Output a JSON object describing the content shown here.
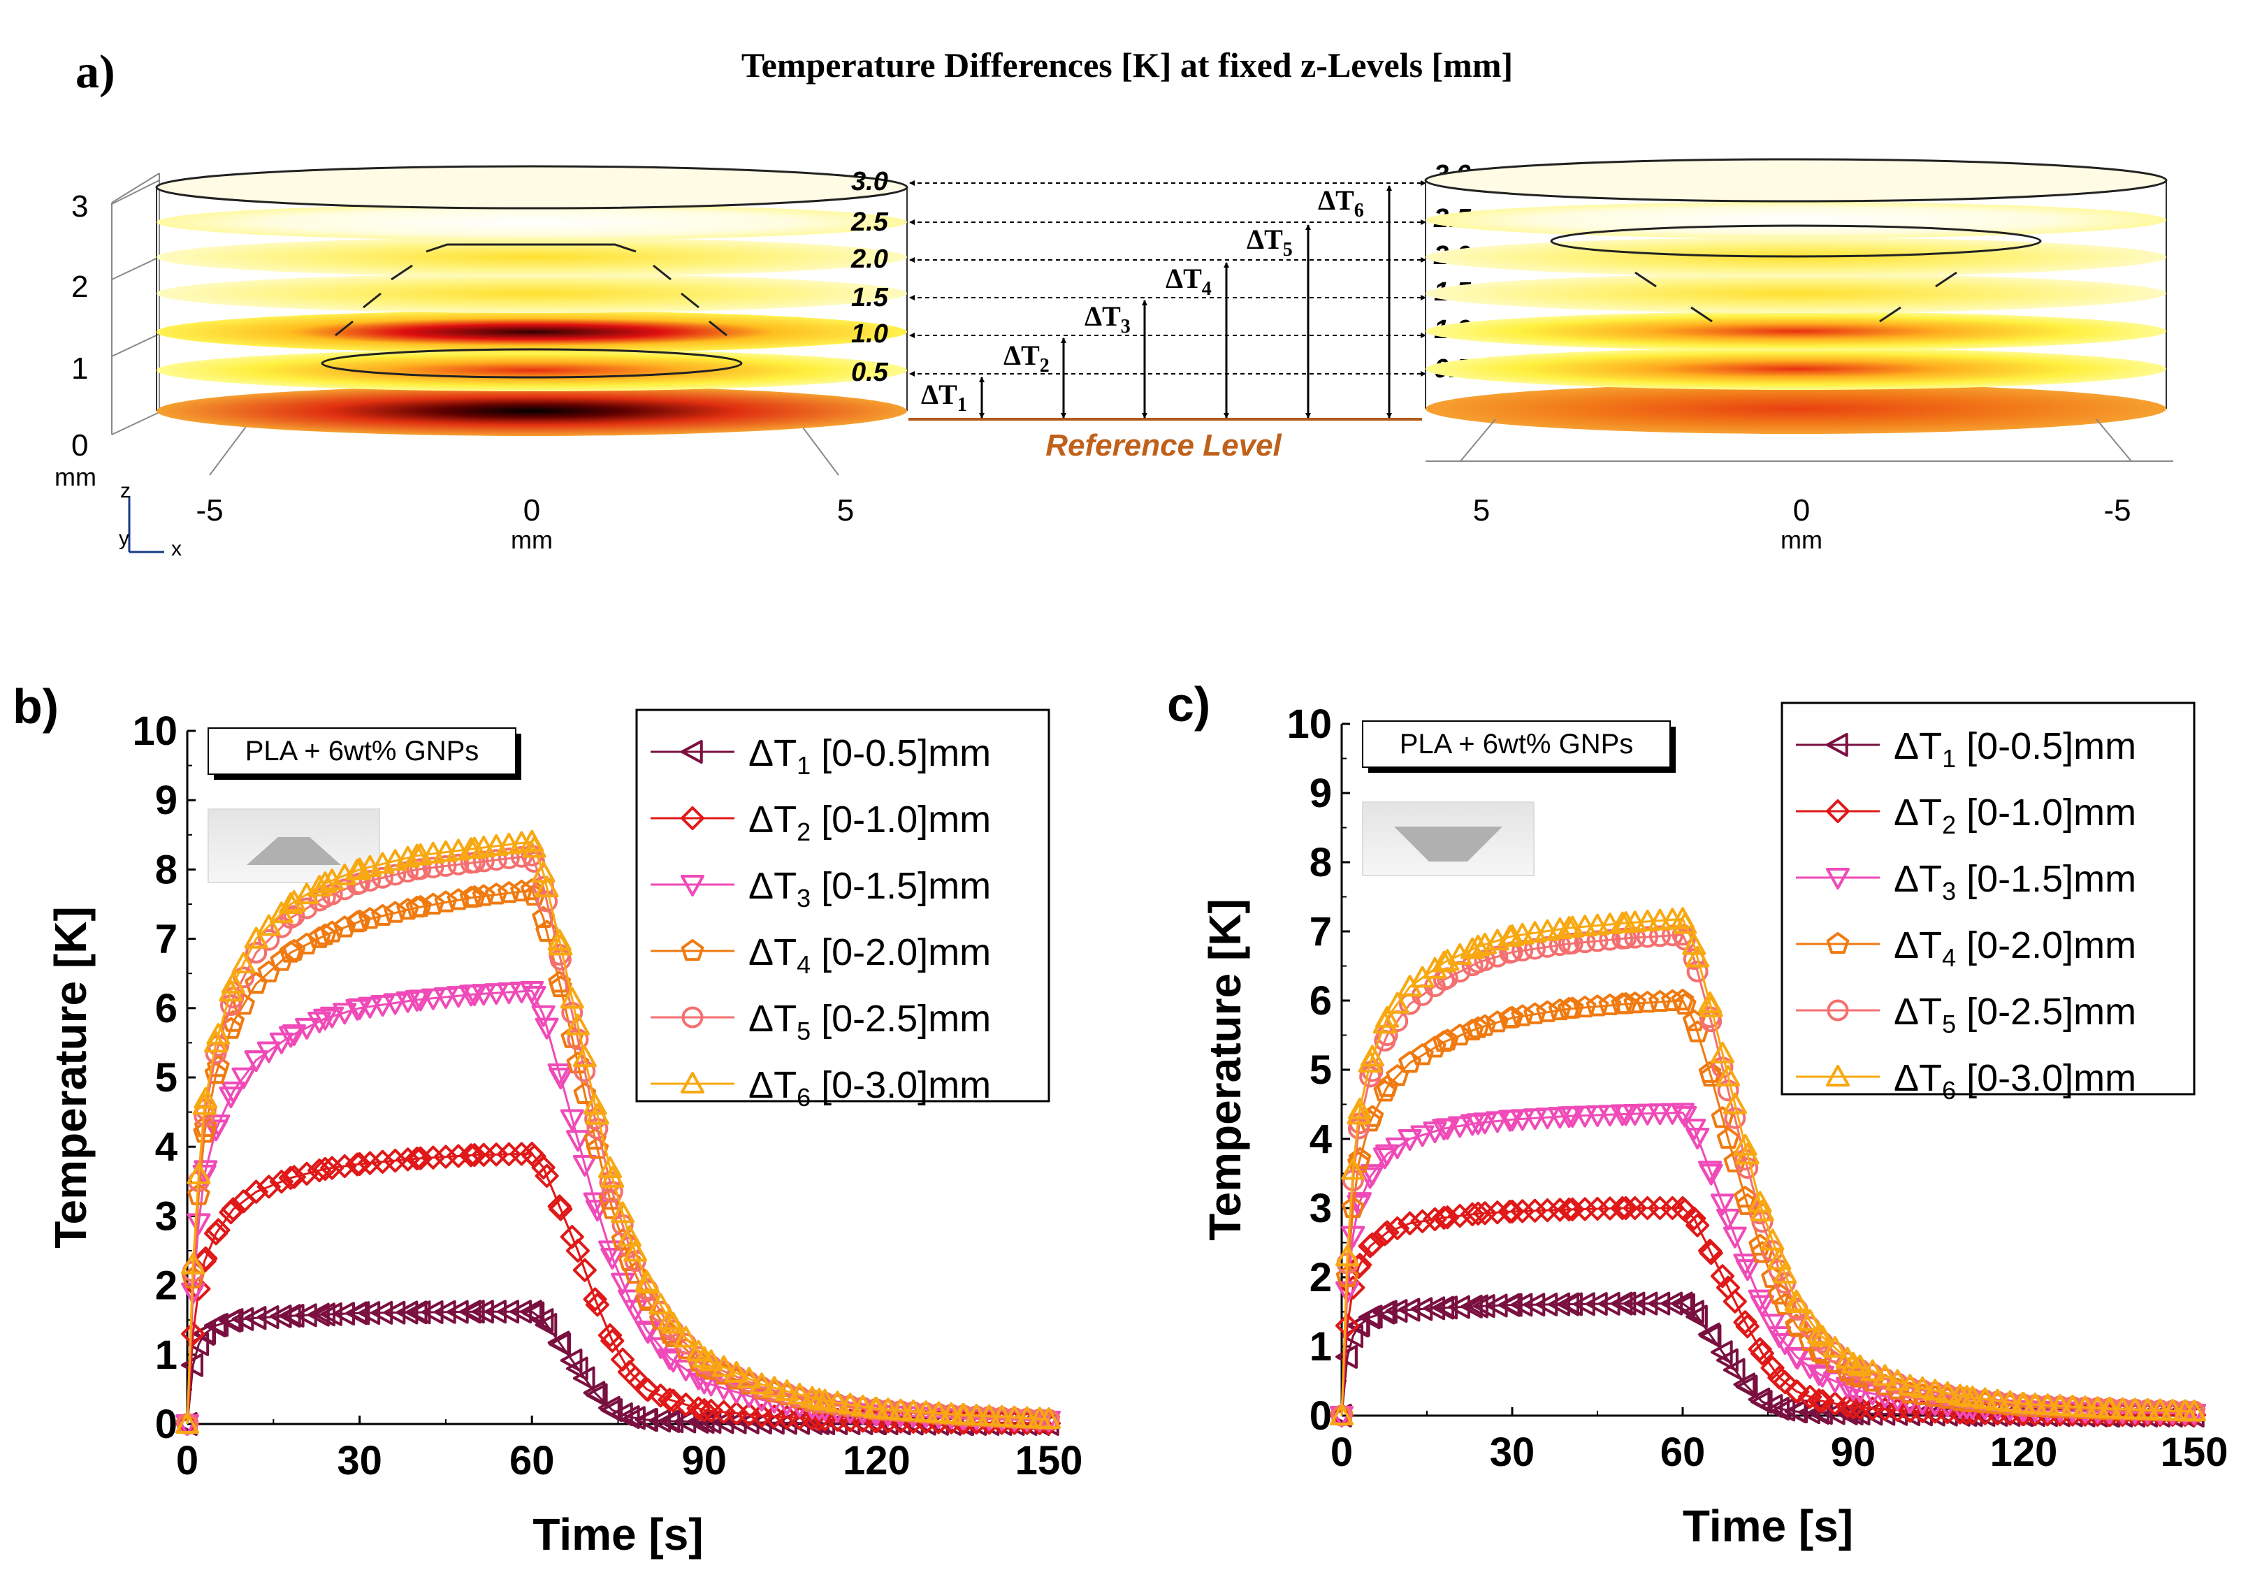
{
  "panel_a": {
    "label": "a)",
    "title": "Temperature Differences [K] at fixed z-Levels [mm]",
    "z_ticks": [
      "0",
      "1",
      "2",
      "3"
    ],
    "z_unit": "mm",
    "left_x_ticks": [
      "-5",
      "0",
      "5"
    ],
    "right_x_ticks": [
      "5",
      "0",
      "-5"
    ],
    "x_unit": "mm",
    "axis_z": "z",
    "axis_y": "y",
    "axis_x": "x",
    "levels": [
      "3.0",
      "2.5",
      "2.0",
      "1.5",
      "1.0",
      "0.5"
    ],
    "deltas": [
      "ΔT1",
      "ΔT2",
      "ΔT3",
      "ΔT4",
      "ΔT5",
      "ΔT6"
    ],
    "delta_base": "ΔT",
    "delta_subs": [
      "1",
      "2",
      "3",
      "4",
      "5",
      "6"
    ],
    "reference_label": "Reference Level",
    "colors": {
      "hot": "#000000",
      "red": "#d01010",
      "orange": "#f08a10",
      "yellow": "#fff02a",
      "pale": "#fffbb0",
      "ref": "#c0601a"
    }
  },
  "panel_b_label": "b)",
  "panel_c_label": "c)",
  "chart_data": [
    {
      "type": "scatter",
      "panel": "b",
      "annotation": "PLA + 6wt% GNPs",
      "inset": "frustum-up",
      "xlabel": "Time [s]",
      "ylabel": "Temperature [K]",
      "xlim": [
        0,
        150
      ],
      "ylim": [
        0,
        10
      ],
      "xticks": [
        0,
        30,
        60,
        90,
        120,
        150
      ],
      "yticks": [
        0,
        1,
        2,
        3,
        4,
        5,
        6,
        7,
        8,
        9,
        10
      ],
      "x": [
        0,
        1,
        2,
        3,
        5,
        8,
        12,
        18,
        24,
        30,
        40,
        50,
        60,
        62,
        65,
        68,
        71,
        74,
        77,
        80,
        84,
        90,
        100,
        110,
        120,
        135,
        150
      ],
      "legend_location": "top-right",
      "series": [
        {
          "name": "ΔT1 [0-0.5]mm",
          "sub": "1",
          "range": "[0-0.5]mm",
          "marker": "triangle-left",
          "color": "#7a1040",
          "values": [
            0,
            0.85,
            1.15,
            1.3,
            1.42,
            1.5,
            1.53,
            1.56,
            1.58,
            1.6,
            1.61,
            1.62,
            1.62,
            1.5,
            1.15,
            0.8,
            0.45,
            0.2,
            0.1,
            0.06,
            0.04,
            0.03,
            0.02,
            0.01,
            0.01,
            0.0,
            0.0
          ]
        },
        {
          "name": "ΔT2 [0-1.0]mm",
          "sub": "2",
          "range": "[0-1.0]mm",
          "marker": "diamond",
          "color": "#e01818",
          "values": [
            0,
            1.3,
            1.95,
            2.35,
            2.75,
            3.1,
            3.35,
            3.55,
            3.68,
            3.75,
            3.83,
            3.88,
            3.9,
            3.7,
            3.1,
            2.5,
            1.8,
            1.2,
            0.75,
            0.5,
            0.35,
            0.2,
            0.12,
            0.07,
            0.04,
            0.02,
            0.01
          ]
        },
        {
          "name": "ΔT3 [0-1.5]mm",
          "sub": "3",
          "range": "[0-1.5]mm",
          "marker": "triangle-down",
          "color": "#f04ab8",
          "values": [
            0,
            1.9,
            2.9,
            3.6,
            4.25,
            4.8,
            5.25,
            5.6,
            5.85,
            6.0,
            6.12,
            6.2,
            6.25,
            5.9,
            5.0,
            4.1,
            3.2,
            2.4,
            1.8,
            1.35,
            0.95,
            0.6,
            0.35,
            0.22,
            0.14,
            0.08,
            0.05
          ]
        },
        {
          "name": "ΔT4 [0-2.0]mm",
          "sub": "4",
          "range": "[0-2.0]mm",
          "marker": "pentagon",
          "color": "#f07a10",
          "values": [
            0,
            2.1,
            3.3,
            4.2,
            5.05,
            5.8,
            6.35,
            6.8,
            7.05,
            7.25,
            7.45,
            7.6,
            7.7,
            7.3,
            6.3,
            5.2,
            4.1,
            3.1,
            2.35,
            1.8,
            1.3,
            0.82,
            0.5,
            0.3,
            0.2,
            0.11,
            0.06
          ]
        },
        {
          "name": "ΔT5 [0-2.5]mm",
          "sub": "5",
          "range": "[0-2.5]mm",
          "marker": "circle",
          "color": "#f47070",
          "values": [
            0,
            2.2,
            3.5,
            4.45,
            5.35,
            6.15,
            6.8,
            7.3,
            7.6,
            7.8,
            8.0,
            8.1,
            8.2,
            7.75,
            6.7,
            5.55,
            4.4,
            3.35,
            2.55,
            1.95,
            1.4,
            0.88,
            0.53,
            0.32,
            0.21,
            0.12,
            0.06
          ]
        },
        {
          "name": "ΔT6 [0-3.0]mm",
          "sub": "6",
          "range": "[0-3.0]mm",
          "marker": "triangle-up",
          "color": "#f8a810",
          "values": [
            0,
            2.3,
            3.6,
            4.6,
            5.5,
            6.35,
            7.0,
            7.5,
            7.8,
            8.0,
            8.2,
            8.3,
            8.4,
            7.95,
            6.9,
            5.75,
            4.6,
            3.55,
            2.7,
            2.05,
            1.5,
            0.95,
            0.57,
            0.35,
            0.22,
            0.13,
            0.07
          ]
        }
      ]
    },
    {
      "type": "scatter",
      "panel": "c",
      "annotation": "PLA + 6wt% GNPs",
      "inset": "frustum-down",
      "xlabel": "Time [s]",
      "ylabel": "Temperature [K]",
      "xlim": [
        0,
        150
      ],
      "ylim": [
        0,
        10
      ],
      "xticks": [
        0,
        30,
        60,
        90,
        120,
        150
      ],
      "yticks": [
        0,
        1,
        2,
        3,
        4,
        5,
        6,
        7,
        8,
        9,
        10
      ],
      "x": [
        0,
        1,
        2,
        3,
        5,
        8,
        12,
        18,
        24,
        30,
        40,
        50,
        60,
        62,
        65,
        68,
        71,
        74,
        77,
        80,
        84,
        90,
        100,
        110,
        120,
        135,
        150
      ],
      "legend_location": "top-right",
      "series": [
        {
          "name": "ΔT1 [0-0.5]mm",
          "sub": "1",
          "range": "[0-0.5]mm",
          "marker": "triangle-left",
          "color": "#7a1040",
          "values": [
            0,
            0.85,
            1.15,
            1.3,
            1.42,
            1.5,
            1.53,
            1.56,
            1.58,
            1.6,
            1.61,
            1.62,
            1.62,
            1.5,
            1.15,
            0.8,
            0.45,
            0.2,
            0.1,
            0.06,
            0.04,
            0.03,
            0.02,
            0.01,
            0.01,
            0.0,
            0.0
          ]
        },
        {
          "name": "ΔT2 [0-1.0]mm",
          "sub": "2",
          "range": "[0-1.0]mm",
          "marker": "diamond",
          "color": "#e01818",
          "values": [
            0,
            1.3,
            1.85,
            2.15,
            2.45,
            2.65,
            2.78,
            2.86,
            2.92,
            2.95,
            2.98,
            3.0,
            3.0,
            2.85,
            2.35,
            1.85,
            1.35,
            0.9,
            0.55,
            0.35,
            0.22,
            0.12,
            0.07,
            0.04,
            0.02,
            0.01,
            0.01
          ]
        },
        {
          "name": "ΔT3 [0-1.5]mm",
          "sub": "3",
          "range": "[0-1.5]mm",
          "marker": "triangle-down",
          "color": "#f04ab8",
          "values": [
            0,
            1.8,
            2.6,
            3.05,
            3.45,
            3.78,
            4.0,
            4.15,
            4.23,
            4.28,
            4.33,
            4.36,
            4.38,
            4.15,
            3.5,
            2.85,
            2.2,
            1.6,
            1.15,
            0.85,
            0.6,
            0.38,
            0.2,
            0.12,
            0.08,
            0.05,
            0.03
          ]
        },
        {
          "name": "ΔT4 [0-2.0]mm",
          "sub": "4",
          "range": "[0-2.0]mm",
          "marker": "pentagon",
          "color": "#f07a10",
          "values": [
            0,
            2.0,
            3.0,
            3.65,
            4.25,
            4.75,
            5.1,
            5.4,
            5.6,
            5.75,
            5.88,
            5.95,
            6.0,
            5.7,
            4.9,
            4.0,
            3.15,
            2.35,
            1.75,
            1.3,
            0.92,
            0.58,
            0.32,
            0.2,
            0.13,
            0.08,
            0.05
          ]
        },
        {
          "name": "ΔT5 [0-2.5]mm",
          "sub": "5",
          "range": "[0-2.5]mm",
          "marker": "circle",
          "color": "#f47070",
          "values": [
            0,
            2.2,
            3.4,
            4.15,
            4.9,
            5.5,
            5.95,
            6.3,
            6.55,
            6.7,
            6.82,
            6.9,
            6.95,
            6.6,
            5.7,
            4.7,
            3.7,
            2.8,
            2.1,
            1.55,
            1.1,
            0.7,
            0.4,
            0.25,
            0.16,
            0.1,
            0.06
          ]
        },
        {
          "name": "ΔT6 [0-3.0]mm",
          "sub": "6",
          "range": "[0-3.0]mm",
          "marker": "triangle-up",
          "color": "#f8a810",
          "values": [
            0,
            2.3,
            3.55,
            4.35,
            5.1,
            5.75,
            6.2,
            6.55,
            6.78,
            6.93,
            7.05,
            7.12,
            7.18,
            6.8,
            5.9,
            4.9,
            3.9,
            2.95,
            2.25,
            1.65,
            1.18,
            0.75,
            0.43,
            0.27,
            0.17,
            0.1,
            0.06
          ]
        }
      ]
    }
  ]
}
